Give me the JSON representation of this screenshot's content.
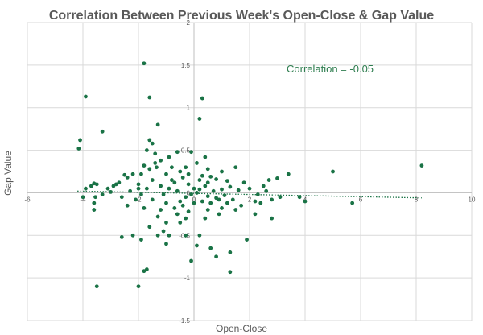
{
  "chart_data": {
    "type": "scatter",
    "title": "Correlation Between Previous Week's Open-Close & Gap Value",
    "xlabel": "Open-Close",
    "ylabel": "Gap Value",
    "annotation": "Correlation = -0.05",
    "xlim": [
      -6,
      10
    ],
    "ylim": [
      -1.5,
      2
    ],
    "x_ticks": [
      -6,
      -4,
      -2,
      0,
      2,
      4,
      6,
      8,
      10
    ],
    "y_ticks": [
      -1.5,
      -1,
      -0.5,
      0,
      0.5,
      1,
      1.5,
      2
    ],
    "grid": true,
    "legend": "none",
    "colors": {
      "points": "#1a7346",
      "trendline": "#1a7346",
      "annotation": "#2e7d4f"
    },
    "trendline": {
      "style": "dotted",
      "x": [
        -4.2,
        8.2
      ],
      "y": [
        0.02,
        -0.06
      ]
    },
    "series": [
      {
        "points": [
          [
            -1.8,
            1.52
          ],
          [
            -3.9,
            1.13
          ],
          [
            -1.6,
            1.12
          ],
          [
            0.3,
            1.11
          ],
          [
            -4.1,
            0.62
          ],
          [
            -4.15,
            0.52
          ],
          [
            -3.3,
            0.72
          ],
          [
            0.2,
            0.87
          ],
          [
            -1.3,
            0.8
          ],
          [
            -0.6,
            0.48
          ],
          [
            -1.6,
            0.62
          ],
          [
            -1.5,
            0.58
          ],
          [
            -1.7,
            0.5
          ],
          [
            -1.4,
            0.46
          ],
          [
            -1.35,
            0.3
          ],
          [
            -1.9,
            0.22
          ],
          [
            -2.5,
            0.21
          ],
          [
            -3.6,
            0.11
          ],
          [
            -3.7,
            0.08
          ],
          [
            -3.9,
            0.05
          ],
          [
            -3.5,
            0.1
          ],
          [
            -3.55,
            -0.05
          ],
          [
            -3.6,
            -0.12
          ],
          [
            -3.6,
            -0.2
          ],
          [
            -4.0,
            -0.05
          ],
          [
            -3.0,
            0.01
          ],
          [
            -2.9,
            0.08
          ],
          [
            -2.4,
            0.18
          ],
          [
            -2.2,
            0.22
          ],
          [
            -2.0,
            0.1
          ],
          [
            -1.8,
            0.32
          ],
          [
            -1.4,
            0.35
          ],
          [
            -0.8,
            0.3
          ],
          [
            -0.5,
            0.25
          ],
          [
            -0.2,
            0.22
          ],
          [
            0.3,
            0.2
          ],
          [
            0.6,
            0.19
          ],
          [
            1.5,
            0.3
          ],
          [
            2.7,
            0.15
          ],
          [
            3.0,
            0.17
          ],
          [
            3.4,
            0.22
          ],
          [
            4.0,
            -0.1
          ],
          [
            5.0,
            0.25
          ],
          [
            5.7,
            -0.12
          ],
          [
            8.2,
            0.32
          ],
          [
            3.1,
            -0.05
          ],
          [
            3.8,
            -0.05
          ],
          [
            2.8,
            -0.08
          ],
          [
            2.2,
            -0.1
          ],
          [
            1.2,
            -0.12
          ],
          [
            1.0,
            -0.18
          ],
          [
            0.9,
            -0.25
          ],
          [
            0.5,
            -0.2
          ],
          [
            0.4,
            -0.3
          ],
          [
            -0.3,
            -0.3
          ],
          [
            -0.5,
            -0.35
          ],
          [
            -1.0,
            -0.35
          ],
          [
            -1.3,
            -0.28
          ],
          [
            -1.6,
            -0.4
          ],
          [
            -1.1,
            -0.45
          ],
          [
            -1.3,
            -0.5
          ],
          [
            -2.2,
            -0.5
          ],
          [
            -2.6,
            -0.52
          ],
          [
            -1.9,
            -0.55
          ],
          [
            -1.0,
            -0.6
          ],
          [
            -0.3,
            -0.5
          ],
          [
            0.2,
            -0.5
          ],
          [
            0.6,
            -0.65
          ],
          [
            1.3,
            -0.7
          ],
          [
            1.9,
            -0.55
          ],
          [
            2.8,
            -0.3
          ],
          [
            2.2,
            -0.25
          ],
          [
            1.5,
            -0.2
          ],
          [
            -0.1,
            -0.8
          ],
          [
            -1.8,
            -0.92
          ],
          [
            -1.7,
            -0.9
          ],
          [
            0.1,
            -0.62
          ],
          [
            -0.9,
            -0.5
          ],
          [
            -3.5,
            -1.1
          ],
          [
            -2.0,
            -1.1
          ],
          [
            1.3,
            -0.93
          ],
          [
            0.8,
            -0.75
          ],
          [
            -0.5,
            -0.1
          ],
          [
            -0.3,
            -0.05
          ],
          [
            -0.6,
            0.02
          ],
          [
            -0.9,
            0.05
          ],
          [
            -1.1,
            -0.02
          ],
          [
            -1.2,
            0.08
          ],
          [
            -0.7,
            0.12
          ],
          [
            -0.2,
            0.1
          ],
          [
            0.0,
            0.05
          ],
          [
            -0.1,
            -0.02
          ],
          [
            0.1,
            0.0
          ],
          [
            0.2,
            0.04
          ],
          [
            0.4,
            0.08
          ],
          [
            0.5,
            -0.04
          ],
          [
            0.7,
            0.02
          ],
          [
            0.8,
            -0.06
          ],
          [
            1.0,
            0.04
          ],
          [
            1.1,
            -0.03
          ],
          [
            1.3,
            0.07
          ],
          [
            1.4,
            -0.08
          ],
          [
            1.6,
            0.03
          ],
          [
            1.8,
            0.12
          ],
          [
            2.0,
            0.05
          ],
          [
            2.3,
            -0.02
          ],
          [
            2.5,
            0.08
          ],
          [
            -0.4,
            0.18
          ],
          [
            -0.8,
            0.15
          ],
          [
            -1.5,
            0.15
          ],
          [
            -1.7,
            0.05
          ],
          [
            -1.9,
            -0.02
          ],
          [
            -2.1,
            -0.08
          ],
          [
            -2.3,
            0.02
          ],
          [
            -2.6,
            -0.05
          ],
          [
            -2.8,
            0.1
          ],
          [
            -2.0,
            0.05
          ],
          [
            -1.5,
            -0.08
          ],
          [
            -1.0,
            -0.12
          ],
          [
            -0.7,
            -0.18
          ],
          [
            -0.4,
            -0.15
          ],
          [
            0.0,
            -0.12
          ],
          [
            0.3,
            -0.1
          ],
          [
            0.6,
            -0.12
          ],
          [
            0.9,
            -0.08
          ],
          [
            -0.2,
            -0.22
          ],
          [
            -0.6,
            -0.25
          ],
          [
            -1.2,
            -0.2
          ],
          [
            -1.8,
            -0.18
          ],
          [
            -2.4,
            -0.15
          ],
          [
            0.2,
            0.15
          ],
          [
            0.5,
            0.12
          ],
          [
            0.8,
            0.16
          ],
          [
            1.2,
            0.14
          ],
          [
            -0.3,
            0.3
          ],
          [
            -1.0,
            0.22
          ],
          [
            -1.2,
            0.38
          ],
          [
            -1.6,
            0.28
          ],
          [
            -0.9,
            0.42
          ],
          [
            0.1,
            0.35
          ],
          [
            0.5,
            0.28
          ],
          [
            1.0,
            0.25
          ],
          [
            -2.7,
            0.12
          ],
          [
            -3.1,
            0.05
          ],
          [
            -3.3,
            -0.02
          ],
          [
            1.7,
            -0.15
          ],
          [
            2.4,
            -0.12
          ],
          [
            2.6,
            0.02
          ],
          [
            -0.1,
            0.48
          ],
          [
            0.4,
            0.42
          ]
        ]
      }
    ]
  }
}
